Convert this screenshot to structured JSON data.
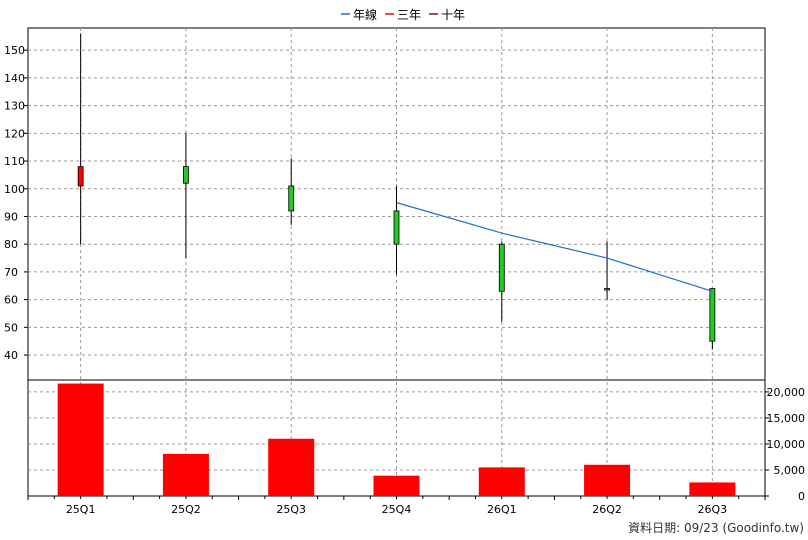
{
  "legend": [
    {
      "label": "年線",
      "color": "#1f6fcf"
    },
    {
      "label": "三年",
      "color": "#ff0000"
    },
    {
      "label": "十年",
      "color": "#990066"
    }
  ],
  "footer_text": "資料日期: 09/23  (Goodinfo.tw)",
  "colors": {
    "up": "#ff0000",
    "down": "#22cc22",
    "volume": "#ff0000",
    "ma": "#1f6fcf",
    "grid": "#999999"
  },
  "chart_data": [
    {
      "type": "candlestick",
      "categories": [
        "25Q1",
        "25Q2",
        "25Q3",
        "25Q4",
        "26Q1",
        "26Q2",
        "26Q3"
      ],
      "ohlc": [
        {
          "open": 101,
          "high": 156,
          "low": 80,
          "close": 108
        },
        {
          "open": 108,
          "high": 120,
          "low": 75,
          "close": 102
        },
        {
          "open": 101,
          "high": 111,
          "low": 87,
          "close": 92
        },
        {
          "open": 92,
          "high": 101,
          "low": 69,
          "close": 80
        },
        {
          "open": 80,
          "high": 81,
          "low": 52,
          "close": 63
        },
        {
          "open": 64,
          "high": 81,
          "low": 60,
          "close": 63.5
        },
        {
          "open": 64,
          "high": 64,
          "low": 42,
          "close": 45
        }
      ],
      "series": [
        {
          "name": "年線",
          "values": [
            null,
            null,
            null,
            95,
            84,
            75,
            63
          ]
        }
      ],
      "yticks": [
        40,
        50,
        60,
        70,
        80,
        90,
        100,
        110,
        120,
        130,
        140,
        150
      ],
      "ylim": [
        31,
        158
      ],
      "grid": true,
      "legend_position": "top-center"
    },
    {
      "type": "bar",
      "categories": [
        "25Q1",
        "25Q2",
        "25Q3",
        "25Q4",
        "26Q1",
        "26Q2",
        "26Q3"
      ],
      "values": [
        21600,
        8100,
        11000,
        3900,
        5500,
        6000,
        2600
      ],
      "yticks": [
        "0",
        "5,000",
        "10,000",
        "15,000",
        "20,000"
      ],
      "ylim": [
        0,
        21900
      ],
      "grid": true
    }
  ]
}
